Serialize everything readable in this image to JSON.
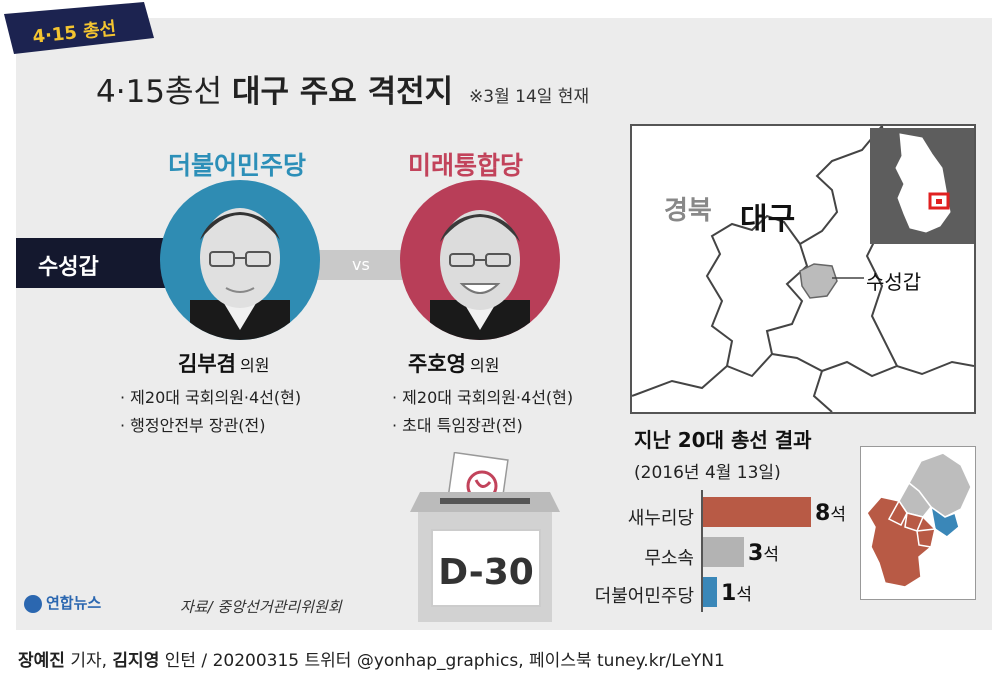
{
  "banner": {
    "text": "4·15 총선"
  },
  "title": {
    "prefix": "4·15총선",
    "main": "대구 주요 격전지",
    "note": "※3월 14일 현재"
  },
  "district": {
    "name": "수성갑",
    "vs": "vs"
  },
  "candidates": [
    {
      "party": "더불어민주당",
      "party_color": "#2c8fb8",
      "name": "김부겸",
      "title": "의원",
      "career": [
        "· 제20대 국회의원·4선(현)",
        "· 행정안전부 장관(전)"
      ]
    },
    {
      "party": "미래통합당",
      "party_color": "#c2435b",
      "name": "주호영",
      "title": "의원",
      "career": [
        "· 제20대 국회의원·4선(현)",
        "· 초대 특임장관(전)"
      ]
    }
  ],
  "map": {
    "region_gyeongbuk": "경북",
    "region_daegu": "대구",
    "district_label": "수성갑"
  },
  "results": {
    "title": "지난 20대 총선 결과",
    "subtitle": "(2016년 4월 13일)",
    "unit": "석",
    "colors": {
      "saenuri": "#b85a45",
      "independent": "#b3b3b3",
      "minjoo": "#3a87b8"
    }
  },
  "chart_data": {
    "type": "bar",
    "title": "지난 20대 총선 결과",
    "subtitle": "(2016년 4월 13일)",
    "categories": [
      "새누리당",
      "무소속",
      "더불어민주당"
    ],
    "values": [
      8,
      3,
      1
    ],
    "unit": "석",
    "orientation": "horizontal"
  },
  "ballot": {
    "label": "D-30"
  },
  "footer": {
    "logo": "연합뉴스",
    "source": "자료/ 중앙선거관리위원회",
    "reporter": "장예진",
    "reporter_role": "기자,",
    "intern": "김지영",
    "rest": "인턴 / 20200315 트위터 @yonhap_graphics, 페이스북 tuney.kr/LeYN1"
  }
}
